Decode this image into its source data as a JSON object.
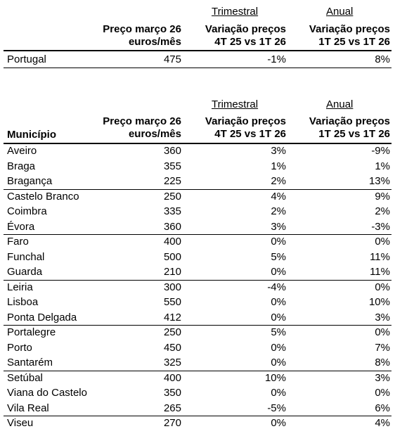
{
  "summary": {
    "header": {
      "group_trimestral": "Trimestral",
      "group_anual": "Anual",
      "price_line1": "Preço março 26",
      "price_line2": "euros/mês",
      "trim_line1": "Variação preços",
      "trim_line2": "4T 25 vs 1T 26",
      "anual_line1": "Variação preços",
      "anual_line2": "1T 25 vs 1T 26"
    },
    "row": {
      "name": "Portugal",
      "price": "475",
      "trim": "-1%",
      "anual": "8%"
    }
  },
  "municipios": {
    "header": {
      "group_trimestral": "Trimestral",
      "group_anual": "Anual",
      "municipio": "Município",
      "price_line1": "Preço março 26",
      "price_line2": "euros/mês",
      "trim_line1": "Variação preços",
      "trim_line2": "4T 25 vs 1T 26",
      "anual_line1": "Variação preços",
      "anual_line2": "1T 25 vs 1T 26"
    },
    "rows": [
      {
        "name": "Aveiro",
        "price": "360",
        "trim": "3%",
        "anual": "-9%"
      },
      {
        "name": "Braga",
        "price": "355",
        "trim": "1%",
        "anual": "1%"
      },
      {
        "name": "Bragança",
        "price": "225",
        "trim": "2%",
        "anual": "13%"
      },
      {
        "name": "Castelo Branco",
        "price": "250",
        "trim": "4%",
        "anual": "9%"
      },
      {
        "name": "Coimbra",
        "price": "335",
        "trim": "2%",
        "anual": "2%"
      },
      {
        "name": "Évora",
        "price": "360",
        "trim": "3%",
        "anual": "-3%"
      },
      {
        "name": "Faro",
        "price": "400",
        "trim": "0%",
        "anual": "0%"
      },
      {
        "name": "Funchal",
        "price": "500",
        "trim": "5%",
        "anual": "11%"
      },
      {
        "name": "Guarda",
        "price": "210",
        "trim": "0%",
        "anual": "11%"
      },
      {
        "name": "Leiria",
        "price": "300",
        "trim": "-4%",
        "anual": "0%"
      },
      {
        "name": "Lisboa",
        "price": "550",
        "trim": "0%",
        "anual": "10%"
      },
      {
        "name": "Ponta Delgada",
        "price": "412",
        "trim": "0%",
        "anual": "3%"
      },
      {
        "name": "Portalegre",
        "price": "250",
        "trim": "5%",
        "anual": "0%"
      },
      {
        "name": "Porto",
        "price": "450",
        "trim": "0%",
        "anual": "7%"
      },
      {
        "name": "Santarém",
        "price": "325",
        "trim": "0%",
        "anual": "8%"
      },
      {
        "name": "Setúbal",
        "price": "400",
        "trim": "10%",
        "anual": "3%"
      },
      {
        "name": "Viana do Castelo",
        "price": "350",
        "trim": "0%",
        "anual": "0%"
      },
      {
        "name": "Vila Real",
        "price": "265",
        "trim": "-5%",
        "anual": "6%"
      },
      {
        "name": "Viseu",
        "price": "270",
        "trim": "0%",
        "anual": "4%"
      }
    ]
  }
}
